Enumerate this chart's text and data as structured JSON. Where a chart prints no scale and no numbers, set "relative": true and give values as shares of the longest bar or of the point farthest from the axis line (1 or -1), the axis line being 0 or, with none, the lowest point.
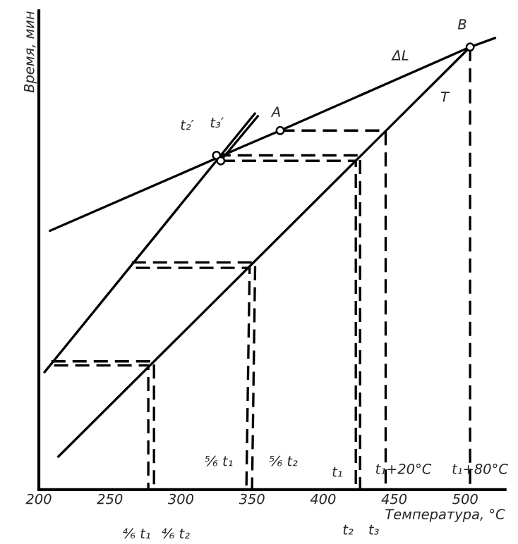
{
  "chart_data": {
    "type": "line",
    "relative": true,
    "xlabel": "Температура, °C",
    "ylabel": "Время, мин",
    "xlim": [
      200,
      528
    ],
    "xticks": [
      200,
      250,
      300,
      350,
      400,
      450,
      500
    ],
    "tick_labels": "x",
    "grid": false,
    "legend": false,
    "series": [
      {
        "name": null,
        "color": "#000000",
        "line_style": "solid",
        "x": [
          213.7,
          503.4
        ],
        "values": [
          0.073,
          0.98
        ]
      },
      {
        "color": "#000000",
        "line_style": "solid",
        "x": [
          204,
          352
        ],
        "values": [
          0.26,
          0.833
        ]
      },
      {
        "color": "#000000",
        "line_style": "solid",
        "x": [
          327.8,
          354.1
        ],
        "values": [
          0.728,
          0.827
        ]
      },
      {
        "color": "#000000",
        "line_style": "solid",
        "x": [
          207.8,
          323,
          340,
          369.8,
          503.4,
          521
        ],
        "values": [
          0.573,
          0.731,
          0.755,
          0.795,
          0.98,
          1.0
        ]
      },
      {
        "color": "#000000",
        "line_style": "dashed",
        "x": [
          370,
          444,
          444
        ],
        "values": [
          0.795,
          0.795,
          0
        ]
      },
      {
        "color": "#000000",
        "line_style": "dashed",
        "x": [
          325,
          426,
          426
        ],
        "values": [
          0.74,
          0.74,
          0
        ]
      },
      {
        "color": "#000000",
        "line_style": "dashed",
        "x": [
          328,
          423,
          423
        ],
        "values": [
          0.728,
          0.728,
          0
        ]
      },
      {
        "color": "#000000",
        "line_style": "dashed",
        "x": [
          265.4,
          352.2,
          350
        ],
        "values": [
          0.503,
          0.503,
          0
        ]
      },
      {
        "color": "#000000",
        "line_style": "dashed",
        "x": [
          268.3,
          348.3,
          346
        ],
        "values": [
          0.491,
          0.491,
          0
        ]
      },
      {
        "color": "#000000",
        "line_style": "dashed",
        "x": [
          208.8,
          281,
          281
        ],
        "values": [
          0.284,
          0.284,
          0
        ]
      },
      {
        "color": "#000000",
        "line_style": "dashed",
        "x": [
          210.7,
          277,
          277
        ],
        "values": [
          0.275,
          0.275,
          0
        ]
      },
      {
        "color": "#000000",
        "line_style": "dashed",
        "x": [
          503.4,
          503.4
        ],
        "values": [
          0.98,
          0
        ]
      },
      {
        "type": "scatter",
        "color": "#000000",
        "marker": "circle",
        "x": [
          325,
          328,
          369.8,
          503.4
        ],
        "values": [
          0.74,
          0.728,
          0.795,
          0.98
        ]
      }
    ],
    "annotations": [
      {
        "text": "B",
        "x": 503.4,
        "y": 0.98
      },
      {
        "text": "ΔL",
        "x": 460,
        "y": 0.92
      },
      {
        "text": "T",
        "x": 480,
        "y": 0.906
      },
      {
        "text": "A",
        "x": 369.8,
        "y": 0.795
      },
      {
        "text": "t₂′",
        "x": 325,
        "y": 0.74
      },
      {
        "text": "t₃′",
        "x": 328,
        "y": 0.728
      },
      {
        "text": "⁵⁄₆ t₁",
        "x": 346,
        "y": 0
      },
      {
        "text": "⁵⁄₆ t₂",
        "x": 350,
        "y": 0
      },
      "t₁",
      {
        "text": "t₁+20°C",
        "x": 444,
        "y": 0
      },
      {
        "text": "t₁+80°C",
        "x": 503.4,
        "y": 0
      },
      {
        "text": "⁴⁄₆ t₁",
        "x": 277,
        "y": 0
      },
      {
        "text": "⁴⁄₆ t₂",
        "x": 281,
        "y": 0
      },
      {
        "text": "t₂",
        "x": 423,
        "y": 0
      },
      {
        "text": "t₃",
        "x": 426,
        "y": 0
      }
    ]
  }
}
